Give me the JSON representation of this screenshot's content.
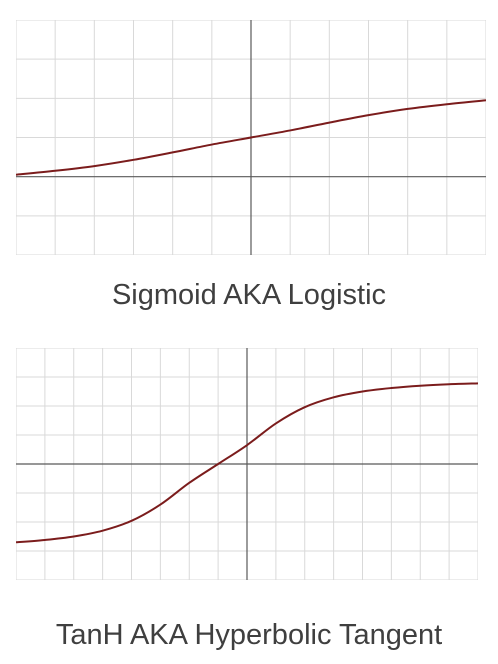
{
  "colors": {
    "grid": "#d9d9d9",
    "axis": "#595959",
    "curve": "#7b1c1c",
    "caption": "#3f3f3f"
  },
  "chart_data": [
    {
      "type": "line",
      "function": "sigmoid",
      "title": "Sigmoid AKA Logistic",
      "xlabel": "",
      "ylabel": "",
      "xlim": [
        -6,
        6
      ],
      "ylim": [
        -2,
        4
      ],
      "grid": true,
      "series": [
        {
          "x": [
            -6,
            -5,
            -4,
            -3,
            -2,
            -1,
            0,
            1,
            2,
            3,
            4,
            5,
            6
          ],
          "y": [
            0.05,
            0.15,
            0.27,
            0.43,
            0.62,
            0.82,
            1.0,
            1.18,
            1.38,
            1.57,
            1.73,
            1.85,
            1.95
          ]
        }
      ]
    },
    {
      "type": "line",
      "function": "tanh",
      "title": "TanH AKA Hyperbolic Tangent",
      "xlabel": "",
      "ylabel": "",
      "xlim": [
        -8,
        8
      ],
      "ylim": [
        -4,
        4
      ],
      "grid": true,
      "series": [
        {
          "x": [
            -8,
            -7,
            -6,
            -5,
            -4,
            -3,
            -2,
            -1,
            0,
            1,
            2,
            3,
            4,
            5,
            6,
            7,
            8
          ],
          "y": [
            -2.7,
            -2.62,
            -2.5,
            -2.3,
            -1.96,
            -1.4,
            -0.65,
            0,
            0.65,
            1.4,
            1.96,
            2.3,
            2.5,
            2.62,
            2.7,
            2.75,
            2.78
          ]
        }
      ]
    }
  ]
}
